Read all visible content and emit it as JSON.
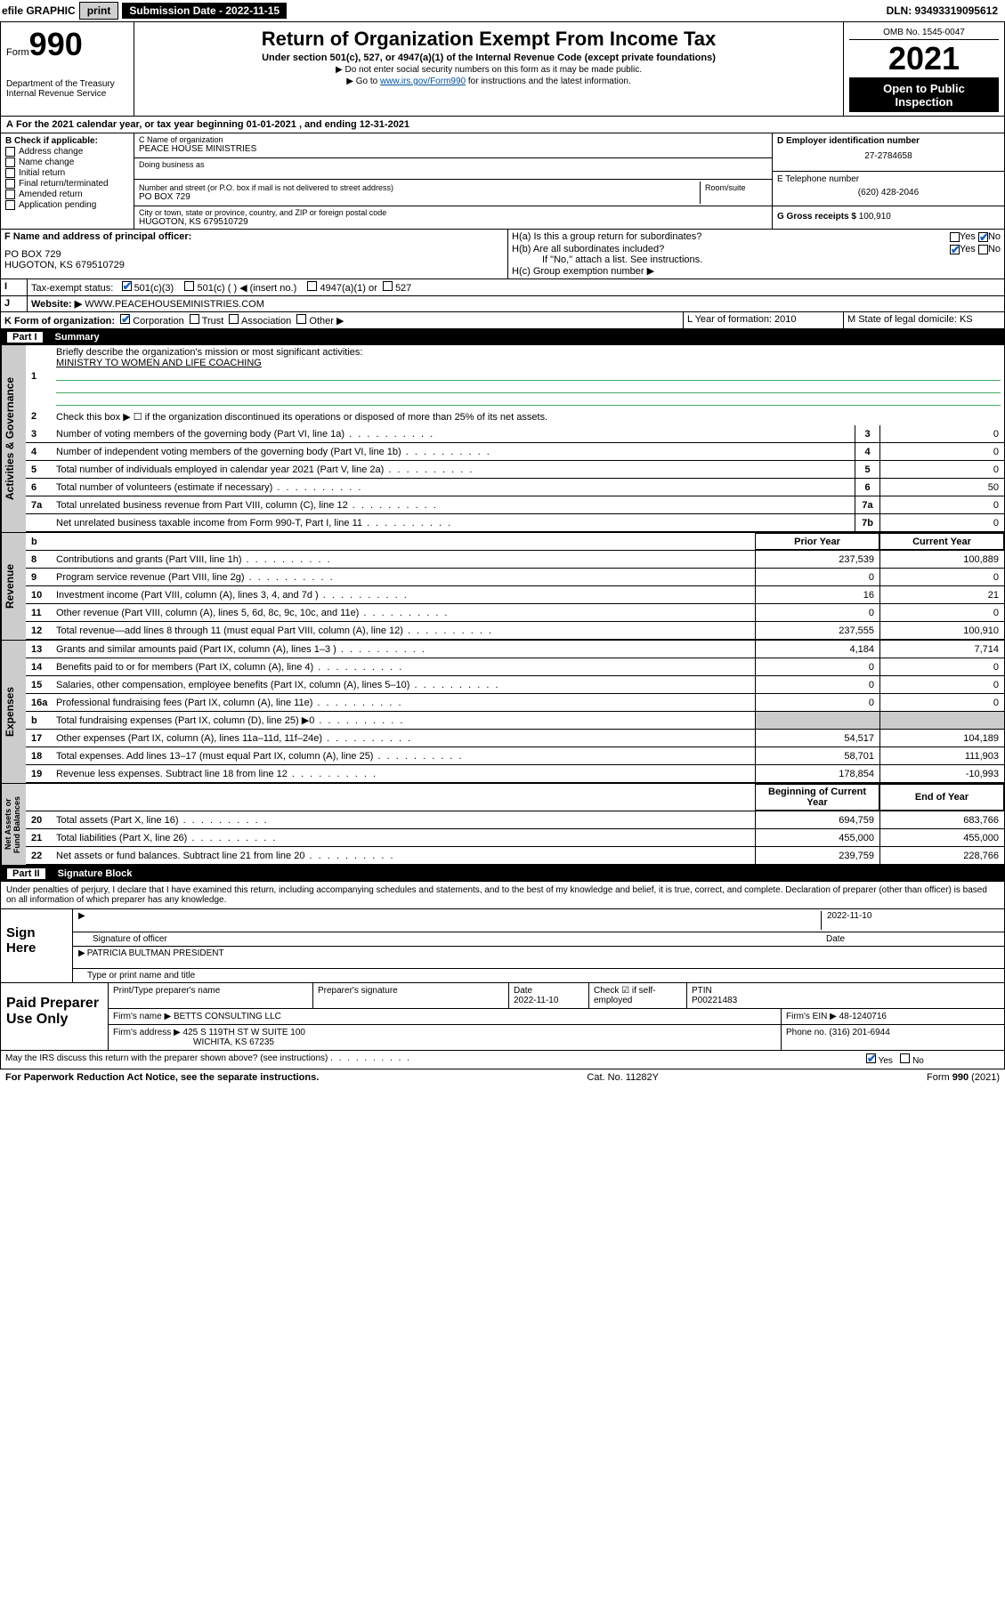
{
  "topbar": {
    "efile": "efile GRAPHIC",
    "print": "print",
    "subdate_lbl": "Submission Date - 2022-11-15",
    "dln": "DLN: 93493319095612"
  },
  "header": {
    "form": "Form",
    "formno": "990",
    "dept": "Department of the Treasury",
    "irs": "Internal Revenue Service",
    "title": "Return of Organization Exempt From Income Tax",
    "sub": "Under section 501(c), 527, or 4947(a)(1) of the Internal Revenue Code (except private foundations)",
    "note1": "▶ Do not enter social security numbers on this form as it may be made public.",
    "note2_pre": "▶ Go to ",
    "note2_link": "www.irs.gov/Form990",
    "note2_post": " for instructions and the latest information.",
    "omb": "OMB No. 1545-0047",
    "year": "2021",
    "openpub": "Open to Public Inspection"
  },
  "A": {
    "text": "For the 2021 calendar year, or tax year beginning 01-01-2021   , and ending 12-31-2021"
  },
  "B": {
    "hdr": "B Check if applicable:",
    "items": [
      "Address change",
      "Name change",
      "Initial return",
      "Final return/terminated",
      "Amended return",
      "Application pending"
    ]
  },
  "C": {
    "lbl": "C Name of organization",
    "name": "PEACE HOUSE MINISTRIES",
    "dba": "Doing business as",
    "addr_lbl": "Number and street (or P.O. box if mail is not delivered to street address)",
    "room": "Room/suite",
    "addr": "PO BOX 729",
    "city_lbl": "City or town, state or province, country, and ZIP or foreign postal code",
    "city": "HUGOTON, KS  679510729"
  },
  "D": {
    "lbl": "D Employer identification number",
    "val": "27-2784658"
  },
  "E": {
    "lbl": "E Telephone number",
    "val": "(620) 428-2046"
  },
  "G": {
    "lbl": "G Gross receipts $",
    "val": "100,910"
  },
  "F": {
    "lbl": "F  Name and address of principal officer:",
    "l1": "PO BOX 729",
    "l2": "HUGOTON, KS  679510729"
  },
  "H": {
    "a": "H(a)  Is this a group return for subordinates?",
    "b": "H(b)  Are all subordinates included?",
    "b_note": "If \"No,\" attach a list. See instructions.",
    "c": "H(c)  Group exemption number ▶"
  },
  "I": {
    "lbl": "Tax-exempt status:",
    "opts": [
      "501(c)(3)",
      "501(c) (  ) ◀ (insert no.)",
      "4947(a)(1) or",
      "527"
    ]
  },
  "J": {
    "lbl": "Website: ▶",
    "val": "WWW.PEACEHOUSEMINISTRIES.COM"
  },
  "K": {
    "lbl": "K Form of organization:",
    "opts": [
      "Corporation",
      "Trust",
      "Association",
      "Other ▶"
    ]
  },
  "L": {
    "lbl": "L Year of formation: 2010"
  },
  "M": {
    "lbl": "M State of legal domicile: KS"
  },
  "part1": {
    "title": "Part I",
    "name": "Summary",
    "mission_lbl": "Briefly describe the organization's mission or most significant activities:",
    "mission": "MINISTRY TO WOMEN AND LIFE COACHING",
    "line2": "Check this box ▶ ☐  if the organization discontinued its operations or disposed of more than 25% of its net assets.",
    "hdr_prior": "Prior Year",
    "hdr_curr": "Current Year",
    "hdr_boy": "Beginning of Current Year",
    "hdr_eoy": "End of Year",
    "rows_gov": [
      {
        "n": "3",
        "t": "Number of voting members of the governing body (Part VI, line 1a)",
        "box": "3",
        "v": "0"
      },
      {
        "n": "4",
        "t": "Number of independent voting members of the governing body (Part VI, line 1b)",
        "box": "4",
        "v": "0"
      },
      {
        "n": "5",
        "t": "Total number of individuals employed in calendar year 2021 (Part V, line 2a)",
        "box": "5",
        "v": "0"
      },
      {
        "n": "6",
        "t": "Total number of volunteers (estimate if necessary)",
        "box": "6",
        "v": "50"
      },
      {
        "n": "7a",
        "t": "Total unrelated business revenue from Part VIII, column (C), line 12",
        "box": "7a",
        "v": "0"
      },
      {
        "n": "",
        "t": "Net unrelated business taxable income from Form 990-T, Part I, line 11",
        "box": "7b",
        "v": "0"
      }
    ],
    "rows_rev": [
      {
        "n": "8",
        "t": "Contributions and grants (Part VIII, line 1h)",
        "p": "237,539",
        "c": "100,889"
      },
      {
        "n": "9",
        "t": "Program service revenue (Part VIII, line 2g)",
        "p": "0",
        "c": "0"
      },
      {
        "n": "10",
        "t": "Investment income (Part VIII, column (A), lines 3, 4, and 7d )",
        "p": "16",
        "c": "21"
      },
      {
        "n": "11",
        "t": "Other revenue (Part VIII, column (A), lines 5, 6d, 8c, 9c, 10c, and 11e)",
        "p": "0",
        "c": "0"
      },
      {
        "n": "12",
        "t": "Total revenue—add lines 8 through 11 (must equal Part VIII, column (A), line 12)",
        "p": "237,555",
        "c": "100,910"
      }
    ],
    "rows_exp": [
      {
        "n": "13",
        "t": "Grants and similar amounts paid (Part IX, column (A), lines 1–3 )",
        "p": "4,184",
        "c": "7,714"
      },
      {
        "n": "14",
        "t": "Benefits paid to or for members (Part IX, column (A), line 4)",
        "p": "0",
        "c": "0"
      },
      {
        "n": "15",
        "t": "Salaries, other compensation, employee benefits (Part IX, column (A), lines 5–10)",
        "p": "0",
        "c": "0"
      },
      {
        "n": "16a",
        "t": "Professional fundraising fees (Part IX, column (A), line 11e)",
        "p": "0",
        "c": "0"
      },
      {
        "n": "b",
        "t": "Total fundraising expenses (Part IX, column (D), line 25) ▶0",
        "p": "",
        "c": "",
        "shade": true
      },
      {
        "n": "17",
        "t": "Other expenses (Part IX, column (A), lines 11a–11d, 11f–24e)",
        "p": "54,517",
        "c": "104,189"
      },
      {
        "n": "18",
        "t": "Total expenses. Add lines 13–17 (must equal Part IX, column (A), line 25)",
        "p": "58,701",
        "c": "111,903"
      },
      {
        "n": "19",
        "t": "Revenue less expenses. Subtract line 18 from line 12",
        "p": "178,854",
        "c": "-10,993"
      }
    ],
    "rows_na": [
      {
        "n": "20",
        "t": "Total assets (Part X, line 16)",
        "p": "694,759",
        "c": "683,766"
      },
      {
        "n": "21",
        "t": "Total liabilities (Part X, line 26)",
        "p": "455,000",
        "c": "455,000"
      },
      {
        "n": "22",
        "t": "Net assets or fund balances. Subtract line 21 from line 20",
        "p": "239,759",
        "c": "228,766"
      }
    ]
  },
  "part2": {
    "title": "Part II",
    "name": "Signature Block",
    "decl": "Under penalties of perjury, I declare that I have examined this return, including accompanying schedules and statements, and to the best of my knowledge and belief, it is true, correct, and complete. Declaration of preparer (other than officer) is based on all information of which preparer has any knowledge.",
    "signhere": "Sign Here",
    "sig_of": "Signature of officer",
    "sig_date": "2022-11-10",
    "date_lbl": "Date",
    "officer": "PATRICIA BULTMAN  PRESIDENT",
    "typename": "Type or print name and title",
    "paid": "Paid Preparer Use Only",
    "pp_name_lbl": "Print/Type preparer's name",
    "pp_sig_lbl": "Preparer's signature",
    "pp_date_lbl": "Date",
    "pp_date": "2022-11-10",
    "pp_check": "Check ☑ if self-employed",
    "ptin_lbl": "PTIN",
    "ptin": "P00221483",
    "firm_lbl": "Firm's name    ▶",
    "firm": "BETTS CONSULTING LLC",
    "ein_lbl": "Firm's EIN ▶",
    "ein": "48-1240716",
    "firmaddr_lbl": "Firm's address ▶",
    "firmaddr1": "425 S 119TH ST W SUITE 100",
    "firmaddr2": "WICHITA, KS  67235",
    "phone_lbl": "Phone no.",
    "phone": "(316) 201-6944",
    "discuss": "May the IRS discuss this return with the preparer shown above? (see instructions)"
  },
  "footer": {
    "pra": "For Paperwork Reduction Act Notice, see the separate instructions.",
    "cat": "Cat. No. 11282Y",
    "form": "Form 990 (2021)"
  },
  "yesno": {
    "yes": "Yes",
    "no": "No"
  }
}
